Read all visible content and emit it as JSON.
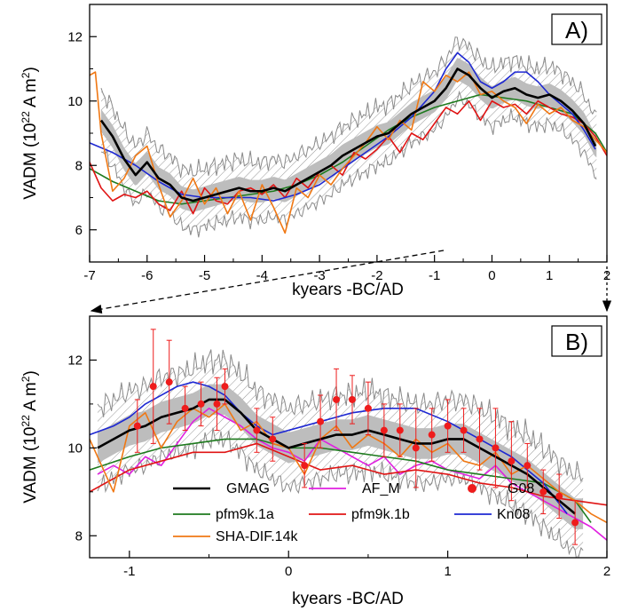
{
  "chart_data": [
    {
      "type": "line",
      "panel_label": "A)",
      "xlabel": "kyears -BC/AD",
      "ylabel_main": "VADM (10",
      "ylabel_exp": "22",
      "ylabel_unit": " A m",
      "ylabel_exp2": "2",
      "ylabel_close": ")",
      "xlim": [
        -7,
        2
      ],
      "ylim": [
        5,
        13
      ],
      "xticks": [
        -7,
        -6,
        -5,
        -4,
        -3,
        -2,
        -1,
        0,
        1,
        2
      ],
      "xtick_labels": [
        "-7",
        "-6",
        "-5",
        "-4",
        "-3",
        "-2",
        "-1",
        "0",
        "1",
        "2"
      ],
      "yticks": [
        6,
        8,
        10,
        12
      ],
      "ytick_labels": [
        "6",
        "8",
        "10",
        "12"
      ],
      "series": [
        {
          "name": "GMAG",
          "color": "#000000",
          "x": [
            -6.8,
            -6.6,
            -6.4,
            -6.2,
            -6.0,
            -5.8,
            -5.6,
            -5.4,
            -5.2,
            -5.0,
            -4.8,
            -4.6,
            -4.4,
            -4.2,
            -4.0,
            -3.8,
            -3.6,
            -3.4,
            -3.2,
            -3.0,
            -2.8,
            -2.6,
            -2.4,
            -2.2,
            -2.0,
            -1.8,
            -1.6,
            -1.4,
            -1.2,
            -1.0,
            -0.8,
            -0.6,
            -0.4,
            -0.2,
            0.0,
            0.2,
            0.4,
            0.6,
            0.8,
            1.0,
            1.2,
            1.4,
            1.6,
            1.8
          ],
          "y": [
            9.4,
            8.9,
            8.2,
            7.7,
            8.1,
            7.6,
            7.4,
            7.0,
            6.9,
            7.0,
            7.1,
            7.2,
            7.3,
            7.2,
            7.2,
            7.3,
            7.2,
            7.4,
            7.6,
            7.8,
            8.0,
            8.3,
            8.5,
            8.7,
            8.9,
            9.0,
            9.3,
            9.6,
            9.8,
            10.0,
            10.4,
            11.0,
            10.8,
            10.4,
            10.1,
            10.3,
            10.4,
            10.2,
            10.1,
            10.2,
            10.0,
            9.7,
            9.3,
            8.6
          ]
        },
        {
          "name": "pfm9k.1a",
          "color": "#1e7a1e",
          "x": [
            -7.0,
            -6.6,
            -6.2,
            -5.8,
            -5.4,
            -5.0,
            -4.6,
            -4.2,
            -3.8,
            -3.4,
            -3.0,
            -2.6,
            -2.2,
            -1.8,
            -1.4,
            -1.0,
            -0.6,
            -0.2,
            0.2,
            0.6,
            1.0,
            1.4,
            1.8,
            2.0
          ],
          "y": [
            7.9,
            7.5,
            7.2,
            6.9,
            6.8,
            6.9,
            7.0,
            7.1,
            7.2,
            7.4,
            7.7,
            8.1,
            8.6,
            9.1,
            9.5,
            9.8,
            10.0,
            10.2,
            10.1,
            10.0,
            9.8,
            9.6,
            9.0,
            8.4
          ]
        },
        {
          "name": "pfm9k.1b",
          "color": "#e01414",
          "x": [
            -7.0,
            -6.8,
            -6.6,
            -6.4,
            -6.2,
            -6.0,
            -5.8,
            -5.6,
            -5.4,
            -5.2,
            -5.0,
            -4.8,
            -4.6,
            -4.4,
            -4.2,
            -4.0,
            -3.8,
            -3.6,
            -3.4,
            -3.2,
            -3.0,
            -2.8,
            -2.6,
            -2.4,
            -2.2,
            -2.0,
            -1.8,
            -1.6,
            -1.4,
            -1.2,
            -1.0,
            -0.8,
            -0.6,
            -0.4,
            -0.2,
            0.0,
            0.2,
            0.4,
            0.6,
            0.8,
            1.0,
            1.2,
            1.4,
            1.6,
            1.8,
            2.0
          ],
          "y": [
            8.1,
            7.3,
            6.9,
            7.1,
            7.0,
            7.2,
            6.8,
            6.6,
            7.2,
            6.5,
            7.3,
            6.9,
            6.8,
            7.2,
            7.3,
            7.1,
            7.4,
            7.0,
            7.6,
            7.3,
            7.8,
            8.0,
            7.7,
            8.4,
            8.2,
            8.5,
            8.9,
            8.4,
            9.0,
            8.8,
            9.3,
            9.8,
            9.6,
            10.0,
            9.4,
            10.0,
            9.8,
            9.9,
            9.6,
            10.0,
            9.8,
            9.6,
            9.5,
            9.3,
            8.9,
            8.3
          ]
        },
        {
          "name": "Kn08",
          "color": "#1e28d2",
          "x": [
            -7.0,
            -6.6,
            -6.2,
            -5.8,
            -5.4,
            -5.0,
            -4.6,
            -4.2,
            -3.8,
            -3.4,
            -3.0,
            -2.6,
            -2.2,
            -1.8,
            -1.4,
            -1.0,
            -0.8,
            -0.6,
            -0.4,
            -0.2,
            0.0,
            0.2,
            0.4,
            0.6,
            0.8,
            1.0,
            1.2,
            1.4,
            1.6,
            1.8
          ],
          "y": [
            8.7,
            8.4,
            8.0,
            7.5,
            7.1,
            7.0,
            7.0,
            7.0,
            6.9,
            7.1,
            7.4,
            7.9,
            8.4,
            8.9,
            9.5,
            10.3,
            11.0,
            11.5,
            11.2,
            10.6,
            10.4,
            10.6,
            10.9,
            10.9,
            10.6,
            10.2,
            9.9,
            9.6,
            9.1,
            8.5
          ]
        },
        {
          "name": "SHA-DIF.14k",
          "color": "#f07814",
          "x": [
            -7.0,
            -6.9,
            -6.8,
            -6.6,
            -6.4,
            -6.2,
            -6.0,
            -5.8,
            -5.6,
            -5.4,
            -5.2,
            -5.0,
            -4.8,
            -4.6,
            -4.4,
            -4.2,
            -4.0,
            -3.8,
            -3.6,
            -3.4,
            -3.2,
            -3.0,
            -2.8,
            -2.6,
            -2.4,
            -2.2,
            -2.0,
            -1.8,
            -1.6,
            -1.4,
            -1.2,
            -1.0,
            -0.8,
            -0.6,
            -0.4,
            -0.2,
            0.0,
            0.2,
            0.4,
            0.6,
            0.8,
            1.0,
            1.2,
            1.4,
            1.6,
            1.8,
            2.0
          ],
          "y": [
            10.8,
            10.9,
            9.0,
            7.2,
            7.6,
            8.3,
            8.6,
            7.4,
            6.4,
            6.9,
            7.6,
            6.8,
            7.3,
            6.5,
            7.2,
            6.3,
            7.4,
            6.7,
            5.9,
            7.3,
            7.0,
            7.7,
            7.4,
            7.9,
            8.3,
            8.7,
            9.2,
            8.8,
            9.4,
            9.1,
            10.6,
            10.3,
            10.8,
            10.6,
            10.9,
            10.2,
            10.3,
            10.0,
            9.8,
            9.3,
            9.9,
            9.6,
            9.8,
            9.4,
            9.2,
            8.8,
            8.4
          ]
        }
      ]
    },
    {
      "type": "line",
      "panel_label": "B)",
      "xlabel": "kyears -BC/AD",
      "ylabel_main": "VADM (10",
      "ylabel_exp": "22",
      "ylabel_unit": " A m",
      "ylabel_exp2": "2",
      "ylabel_close": ")",
      "xlim": [
        -1.25,
        2
      ],
      "ylim": [
        7.5,
        13
      ],
      "xticks": [
        -1,
        0,
        1,
        2
      ],
      "xtick_labels": [
        "-1",
        "0",
        "1",
        "2"
      ],
      "yticks": [
        8,
        10,
        12
      ],
      "ytick_labels": [
        "8",
        "10",
        "12"
      ],
      "legend": [
        {
          "name": "GMAG",
          "color": "#000000",
          "kind": "line"
        },
        {
          "name": "AF_M",
          "color": "#e020e0",
          "kind": "line"
        },
        {
          "name": "G08",
          "color": "#ee1c1c",
          "kind": "dot"
        },
        {
          "name": "pfm9k.1a",
          "color": "#1e7a1e",
          "kind": "line"
        },
        {
          "name": "pfm9k.1b",
          "color": "#e01414",
          "kind": "line"
        },
        {
          "name": "Kn08",
          "color": "#1e28d2",
          "kind": "line"
        },
        {
          "name": "SHA-DIF.14k",
          "color": "#f07814",
          "kind": "line"
        }
      ],
      "series": [
        {
          "name": "GMAG",
          "color": "#000000",
          "x": [
            -1.2,
            -1.1,
            -1.0,
            -0.9,
            -0.8,
            -0.7,
            -0.6,
            -0.5,
            -0.4,
            -0.3,
            -0.2,
            -0.1,
            0.0,
            0.1,
            0.2,
            0.3,
            0.4,
            0.5,
            0.6,
            0.7,
            0.8,
            0.9,
            1.0,
            1.1,
            1.2,
            1.3,
            1.4,
            1.5,
            1.6,
            1.7,
            1.8
          ],
          "y": [
            10.0,
            10.2,
            10.4,
            10.5,
            10.7,
            10.8,
            10.9,
            11.1,
            11.1,
            10.8,
            10.4,
            10.2,
            10.0,
            10.1,
            10.2,
            10.3,
            10.3,
            10.4,
            10.3,
            10.2,
            10.1,
            10.1,
            10.2,
            10.2,
            10.0,
            9.8,
            9.6,
            9.4,
            9.1,
            8.8,
            8.5
          ]
        },
        {
          "name": "AF_M",
          "color": "#e020e0",
          "x": [
            -1.2,
            -1.1,
            -1.0,
            -0.9,
            -0.8,
            -0.7,
            -0.6,
            -0.5,
            -0.4,
            -0.3,
            -0.2,
            -0.1,
            0.0,
            0.1,
            0.2,
            0.3,
            0.4,
            0.5,
            0.6,
            0.7,
            0.8,
            0.9,
            1.0,
            1.1,
            1.2,
            1.3,
            1.4,
            1.5,
            1.6,
            1.7,
            1.8,
            1.9,
            2.0
          ],
          "y": [
            9.4,
            9.6,
            9.4,
            9.8,
            9.6,
            10.1,
            10.6,
            10.9,
            10.7,
            10.5,
            10.2,
            10.0,
            9.9,
            9.7,
            10.2,
            10.0,
            9.8,
            9.6,
            9.8,
            9.4,
            9.6,
            9.7,
            9.5,
            9.4,
            9.3,
            9.6,
            9.2,
            9.0,
            8.8,
            8.6,
            8.4,
            8.2,
            7.9
          ]
        },
        {
          "name": "pfm9k.1a",
          "color": "#1e7a1e",
          "x": [
            -1.25,
            -1.0,
            -0.8,
            -0.6,
            -0.4,
            -0.2,
            0.0,
            0.2,
            0.4,
            0.6,
            0.8,
            1.0,
            1.2,
            1.4,
            1.6,
            1.8,
            1.9
          ],
          "y": [
            9.5,
            9.8,
            10.0,
            10.1,
            10.2,
            10.2,
            10.0,
            10.0,
            9.9,
            9.8,
            9.7,
            9.5,
            9.4,
            9.3,
            9.2,
            8.8,
            8.3
          ]
        },
        {
          "name": "pfm9k.1b",
          "color": "#e01414",
          "x": [
            -1.25,
            -1.0,
            -0.8,
            -0.6,
            -0.4,
            -0.2,
            0.0,
            0.2,
            0.4,
            0.6,
            0.8,
            1.0,
            1.2,
            1.4,
            1.6,
            1.8,
            2.0
          ],
          "y": [
            9.0,
            9.5,
            9.7,
            9.9,
            9.9,
            10.1,
            9.8,
            9.5,
            9.6,
            9.4,
            9.5,
            9.4,
            9.2,
            9.1,
            8.9,
            8.8,
            8.7
          ]
        },
        {
          "name": "Kn08",
          "color": "#1e28d2",
          "x": [
            -1.25,
            -1.1,
            -1.0,
            -0.9,
            -0.8,
            -0.7,
            -0.6,
            -0.5,
            -0.4,
            -0.3,
            -0.2,
            -0.1,
            0.0,
            0.2,
            0.4,
            0.6,
            0.8,
            1.0,
            1.2,
            1.4,
            1.6,
            1.75
          ],
          "y": [
            10.3,
            10.5,
            10.7,
            11.0,
            11.2,
            11.4,
            11.5,
            11.4,
            11.2,
            10.8,
            10.5,
            10.3,
            10.4,
            10.6,
            10.8,
            10.9,
            10.9,
            10.6,
            10.2,
            9.8,
            9.2,
            8.5
          ]
        },
        {
          "name": "SHA-DIF.14k",
          "color": "#f07814",
          "x": [
            -1.25,
            -1.1,
            -1.0,
            -0.9,
            -0.8,
            -0.7,
            -0.6,
            -0.5,
            -0.4,
            -0.3,
            -0.2,
            -0.1,
            0.0,
            0.1,
            0.2,
            0.3,
            0.4,
            0.5,
            0.6,
            0.7,
            0.8,
            0.9,
            1.0,
            1.1,
            1.2,
            1.3,
            1.4,
            1.5,
            1.6,
            1.7,
            1.8,
            1.9,
            2.0
          ],
          "y": [
            10.2,
            9.0,
            10.5,
            10.8,
            10.0,
            10.6,
            10.9,
            10.7,
            11.0,
            10.4,
            10.6,
            10.1,
            10.0,
            9.4,
            10.2,
            10.5,
            10.0,
            10.3,
            10.1,
            9.8,
            10.2,
            9.9,
            10.1,
            9.7,
            9.6,
            9.9,
            9.4,
            9.6,
            9.3,
            9.0,
            8.8,
            8.5,
            8.3
          ]
        }
      ],
      "points": {
        "name": "G08",
        "color": "#ee1c1c",
        "x": [
          -0.95,
          -0.85,
          -0.75,
          -0.65,
          -0.55,
          -0.45,
          -0.4,
          -0.2,
          -0.1,
          0.1,
          0.2,
          0.3,
          0.4,
          0.5,
          0.6,
          0.7,
          0.8,
          0.9,
          1.0,
          1.1,
          1.2,
          1.3,
          1.4,
          1.5,
          1.6,
          1.7,
          1.8
        ],
        "y": [
          10.5,
          11.4,
          11.5,
          10.9,
          11.0,
          11.0,
          11.4,
          10.4,
          10.2,
          9.6,
          10.6,
          11.1,
          11.1,
          10.9,
          10.4,
          10.4,
          10.0,
          10.3,
          10.5,
          10.4,
          10.2,
          10.0,
          9.7,
          9.6,
          9.0,
          8.9,
          8.3
        ],
        "err": [
          0.6,
          1.3,
          0.95,
          0.5,
          0.5,
          0.6,
          0.4,
          0.5,
          0.5,
          0.5,
          0.6,
          0.7,
          0.55,
          0.6,
          0.6,
          0.6,
          0.9,
          0.6,
          0.6,
          0.5,
          0.7,
          0.9,
          0.9,
          0.5,
          0.5,
          0.5,
          0.5
        ]
      }
    }
  ],
  "annotations": {
    "arrow_note": ""
  }
}
